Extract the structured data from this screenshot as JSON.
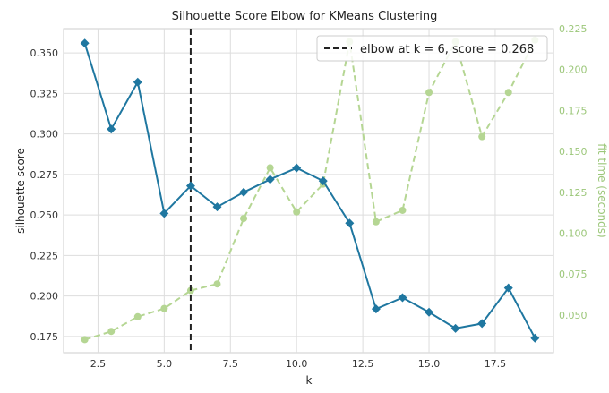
{
  "chart_data": {
    "type": "line",
    "title": "Silhouette Score Elbow for KMeans Clustering",
    "xlabel": "k",
    "ylabel": "silhouette score",
    "y2label": "fit time (seconds)",
    "xlim": [
      1.2,
      19.7
    ],
    "ylim": [
      0.165,
      0.365
    ],
    "y2lim": [
      0.027,
      0.225
    ],
    "x_ticks": [
      2.5,
      5.0,
      7.5,
      10.0,
      12.5,
      15.0,
      17.5
    ],
    "x_tick_labels": [
      "2.5",
      "5.0",
      "7.5",
      "10.0",
      "12.5",
      "15.0",
      "17.5"
    ],
    "y_ticks": [
      0.175,
      0.2,
      0.225,
      0.25,
      0.275,
      0.3,
      0.325,
      0.35
    ],
    "y_tick_labels": [
      "0.175",
      "0.200",
      "0.225",
      "0.250",
      "0.275",
      "0.300",
      "0.325",
      "0.350"
    ],
    "y2_ticks": [
      0.05,
      0.075,
      0.1,
      0.125,
      0.15,
      0.175,
      0.2,
      0.225
    ],
    "y2_tick_labels": [
      "0.050",
      "0.075",
      "0.100",
      "0.125",
      "0.150",
      "0.175",
      "0.200",
      "0.225"
    ],
    "grid": true,
    "legend_position": "top-right",
    "legend_label": "elbow at k = 6, score = 0.268",
    "elbow_k": 6,
    "x": [
      2,
      3,
      4,
      5,
      6,
      7,
      8,
      9,
      10,
      11,
      12,
      13,
      14,
      15,
      16,
      17,
      18,
      19
    ],
    "series": [
      {
        "axis": "left",
        "color": "#1f77a0",
        "values": [
          0.356,
          0.303,
          0.332,
          0.251,
          0.268,
          0.255,
          0.264,
          0.272,
          0.279,
          0.271,
          0.245,
          0.192,
          0.199,
          0.19,
          0.18,
          0.183,
          0.205,
          0.174
        ]
      },
      {
        "axis": "right",
        "color": "#b5d693",
        "values": [
          0.035,
          0.04,
          0.049,
          0.054,
          0.065,
          0.069,
          0.109,
          0.14,
          0.113,
          0.13,
          0.217,
          0.107,
          0.114,
          0.186,
          0.217,
          0.159,
          0.186,
          0.218
        ]
      }
    ],
    "colors": {
      "primary": "#1f77a0",
      "secondary": "#b5d693",
      "elbow": "#222222",
      "grid": "#dddddd",
      "right_axis_text": "#9cc77a"
    }
  }
}
